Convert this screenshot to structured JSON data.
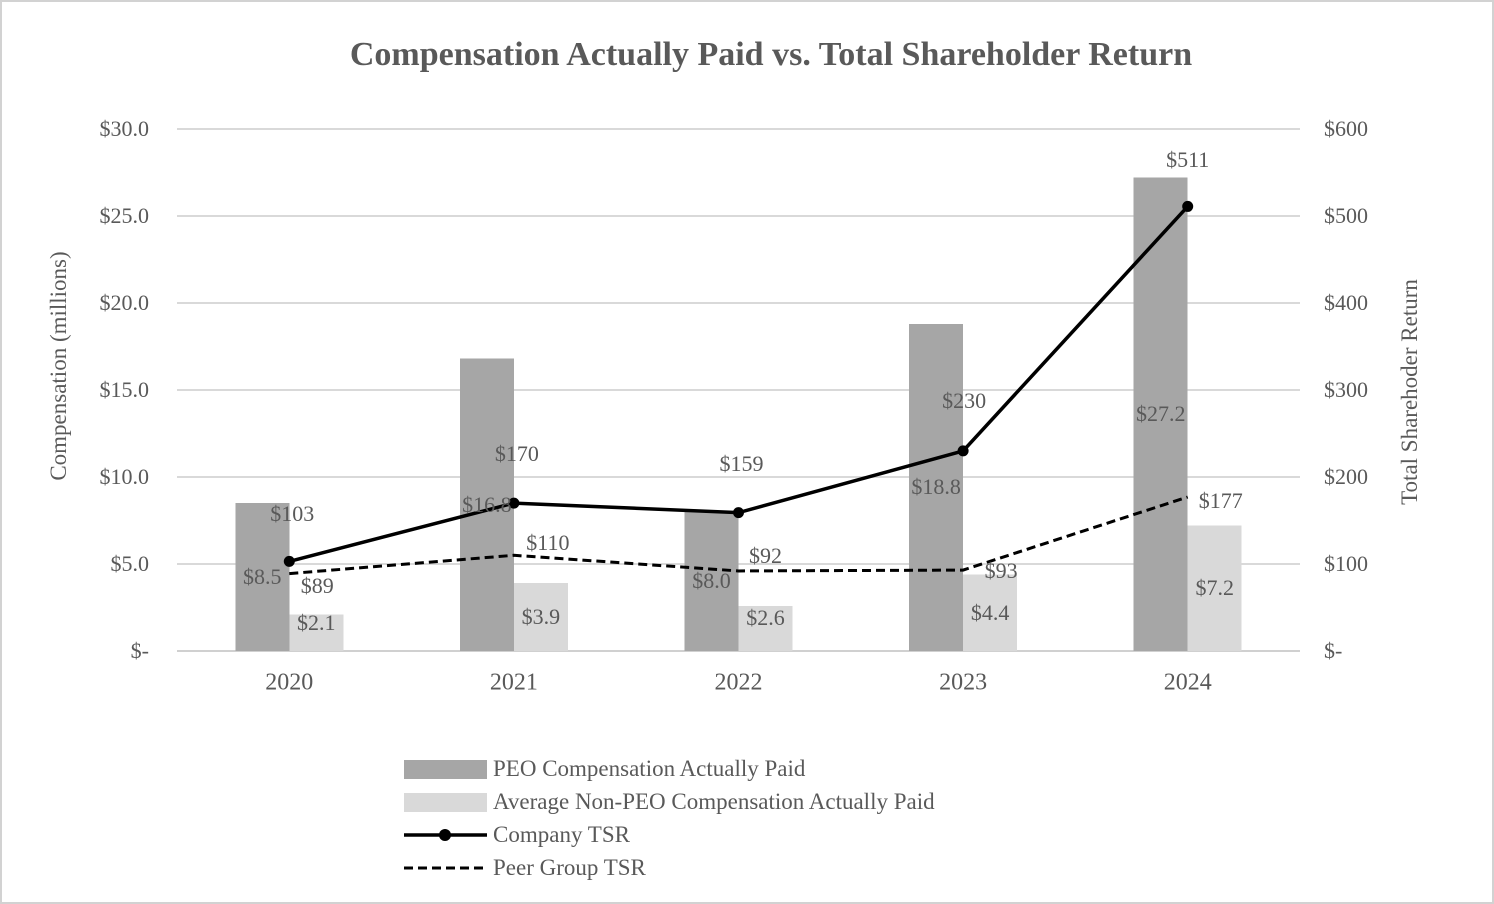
{
  "chart_data": {
    "type": "combo",
    "title": "Compensation Actually Paid vs. Total Shareholder Return",
    "categories": [
      "2020",
      "2021",
      "2022",
      "2023",
      "2024"
    ],
    "left_axis": {
      "label": "Compensation (millions)",
      "ticks": [
        "$30.0",
        "$25.0",
        "$20.0",
        "$15.0",
        "$10.0",
        "$5.0",
        "$-"
      ],
      "min": 0,
      "max": 30
    },
    "right_axis": {
      "label": "Total Sharehoder Return",
      "ticks": [
        "$600",
        "$500",
        "$400",
        "$300",
        "$200",
        "$100",
        "$-"
      ],
      "min": 0,
      "max": 600
    },
    "series": [
      {
        "name": "PEO Compensation Actually Paid",
        "type": "bar",
        "axis": "left",
        "color": "#a6a6a6",
        "values": [
          8.5,
          16.8,
          8.0,
          18.8,
          27.2
        ],
        "labels": [
          "$8.5",
          "$16.8",
          "$8.0",
          "$18.8",
          "$27.2"
        ]
      },
      {
        "name": "Average Non-PEO Compensation Actually Paid",
        "type": "bar",
        "axis": "left",
        "color": "#d9d9d9",
        "values": [
          2.1,
          3.9,
          2.6,
          4.4,
          7.2
        ],
        "labels": [
          "$2.1",
          "$3.9",
          "$2.6",
          "$4.4",
          "$7.2"
        ]
      },
      {
        "name": "Company TSR",
        "type": "line",
        "axis": "right",
        "line_style": "solid",
        "marker": "circle",
        "color": "#000000",
        "values": [
          103,
          170,
          159,
          230,
          511
        ],
        "labels": [
          "$103",
          "$170",
          "$159",
          "$230",
          "$511"
        ],
        "label_offsets": [
          [
            3,
            -47
          ],
          [
            3,
            -49
          ],
          [
            3,
            -49
          ],
          [
            1,
            -50
          ],
          [
            0,
            -46
          ]
        ]
      },
      {
        "name": "Peer Group TSR",
        "type": "line",
        "axis": "right",
        "line_style": "dashed",
        "marker": "none",
        "color": "#000000",
        "values": [
          89,
          110,
          92,
          93,
          177
        ],
        "labels": [
          "$89",
          "$110",
          "$92",
          "$93",
          "$177"
        ],
        "label_offsets": [
          [
            28,
            12
          ],
          [
            34,
            -12
          ],
          [
            27,
            -15
          ],
          [
            38,
            1
          ],
          [
            33,
            4
          ]
        ]
      }
    ],
    "legend_position": "bottom",
    "grid": true,
    "colors": {
      "text": "#595959",
      "gridline": "#d9d9d9",
      "axis_line": "#d0d0d0",
      "peo_bar": "#a6a6a6",
      "non_peo_bar": "#d9d9d9",
      "line": "#000000",
      "canvas_border": "#d2d2d2"
    }
  }
}
